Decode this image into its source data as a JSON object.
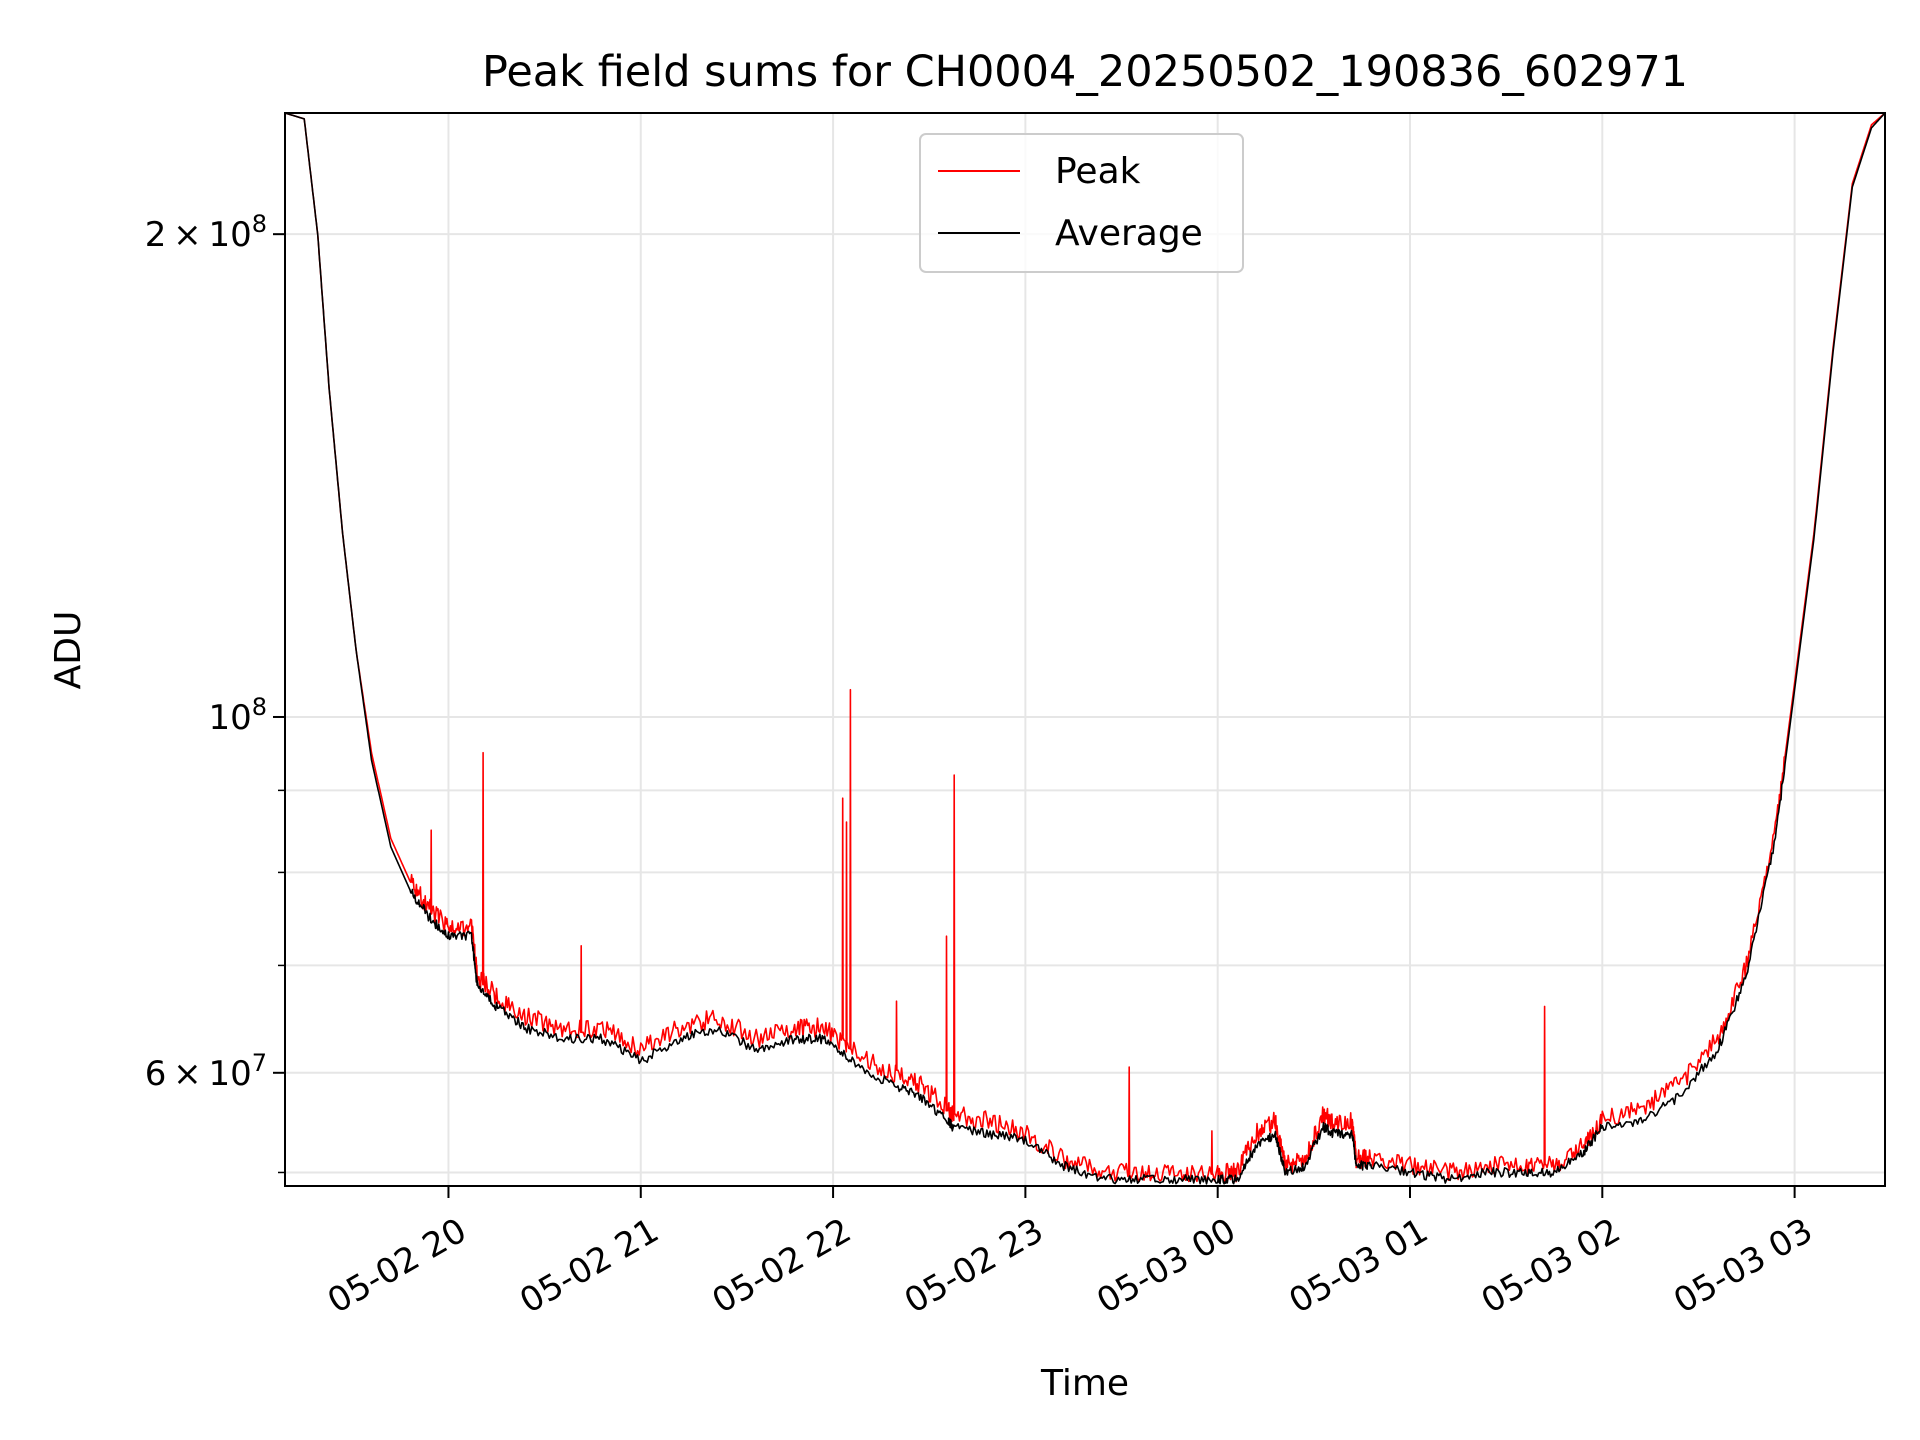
{
  "chart_data": {
    "type": "line",
    "title": "Peak field sums for CH0004_20250502_190836_602971",
    "xlabel": "Time",
    "ylabel": "ADU",
    "yscale": "log",
    "ylim": [
      51000000,
      238000000
    ],
    "xlim_hours": [
      19.15,
      27.47
    ],
    "grid": true,
    "legend_position": "upper center",
    "x_tick_labels": [
      "05-02 20",
      "05-02 21",
      "05-02 22",
      "05-02 23",
      "05-03 00",
      "05-03 01",
      "05-03 02",
      "05-03 03"
    ],
    "x_tick_hours": [
      20,
      21,
      22,
      23,
      24,
      25,
      26,
      27
    ],
    "y_major_ticks": [
      {
        "value": 60000000,
        "base": "6",
        "exp": "7",
        "times": true
      },
      {
        "value": 100000000,
        "base": "",
        "exp": "8",
        "times": false
      },
      {
        "value": 200000000,
        "base": "2",
        "exp": "8",
        "times": true
      }
    ],
    "y_minor_ticks": [
      52000000,
      70000000,
      80000000,
      90000000
    ],
    "colors": {
      "peak": "#ff0000",
      "average": "#000000",
      "grid": "#e6e6e6"
    },
    "series": [
      {
        "name": "Peak",
        "color": "#ff0000",
        "x_hours": [
          19.15,
          19.25,
          19.32,
          19.38,
          19.45,
          19.52,
          19.6,
          19.7,
          19.8,
          19.9,
          20.0,
          20.12,
          20.15,
          20.25,
          20.4,
          20.6,
          20.8,
          21.0,
          21.2,
          21.4,
          21.6,
          21.8,
          21.95,
          22.1,
          22.3,
          22.45,
          22.6,
          22.62,
          22.8,
          23.0,
          23.2,
          23.4,
          23.6,
          23.8,
          24.0,
          24.1,
          24.2,
          24.3,
          24.35,
          24.45,
          24.55,
          24.6,
          24.7,
          24.72,
          24.8,
          25.0,
          25.2,
          25.4,
          25.6,
          25.75,
          25.9,
          26.0,
          26.2,
          26.4,
          26.6,
          26.75,
          26.9,
          27.0,
          27.1,
          27.2,
          27.3,
          27.4,
          27.47
        ],
        "y": [
          238000000,
          236000000,
          200000000,
          160000000,
          130000000,
          110000000,
          95000000,
          84000000,
          79000000,
          76000000,
          74000000,
          74000000,
          69000000,
          67000000,
          65000000,
          64000000,
          64000000,
          62000000,
          64000000,
          65000000,
          63000000,
          64000000,
          64000000,
          62000000,
          60000000,
          59000000,
          57000000,
          56500000,
          56000000,
          55000000,
          53000000,
          52000000,
          52000000,
          52000000,
          52000000,
          52000000,
          55000000,
          56000000,
          52500000,
          53000000,
          56500000,
          56000000,
          56000000,
          53000000,
          53000000,
          52500000,
          52000000,
          52500000,
          52500000,
          52500000,
          54000000,
          56000000,
          57000000,
          59000000,
          63000000,
          70000000,
          85000000,
          105000000,
          130000000,
          170000000,
          215000000,
          234000000,
          238000000
        ],
        "spikes": [
          {
            "hour": 19.91,
            "value": 85000000
          },
          {
            "hour": 20.18,
            "value": 95000000
          },
          {
            "hour": 20.69,
            "value": 72000000
          },
          {
            "hour": 22.05,
            "value": 89000000
          },
          {
            "hour": 22.07,
            "value": 86000000
          },
          {
            "hour": 22.09,
            "value": 104000000
          },
          {
            "hour": 22.33,
            "value": 66500000
          },
          {
            "hour": 22.59,
            "value": 73000000
          },
          {
            "hour": 22.63,
            "value": 92000000
          },
          {
            "hour": 23.54,
            "value": 60500000
          },
          {
            "hour": 23.97,
            "value": 55200000
          },
          {
            "hour": 25.7,
            "value": 66000000
          }
        ]
      },
      {
        "name": "Average",
        "color": "#000000",
        "x_hours": [
          19.15,
          19.25,
          19.32,
          19.38,
          19.45,
          19.52,
          19.6,
          19.7,
          19.8,
          19.9,
          20.0,
          20.12,
          20.15,
          20.25,
          20.4,
          20.6,
          20.8,
          21.0,
          21.2,
          21.4,
          21.6,
          21.8,
          21.95,
          22.1,
          22.3,
          22.45,
          22.6,
          22.62,
          22.8,
          23.0,
          23.2,
          23.4,
          23.6,
          23.8,
          24.0,
          24.1,
          24.2,
          24.3,
          24.35,
          24.45,
          24.55,
          24.6,
          24.7,
          24.72,
          24.8,
          25.0,
          25.2,
          25.4,
          25.6,
          25.75,
          25.9,
          26.0,
          26.2,
          26.4,
          26.6,
          26.75,
          26.9,
          27.0,
          27.1,
          27.2,
          27.3,
          27.4,
          27.47
        ],
        "y": [
          238000000,
          236000000,
          200000000,
          160000000,
          130000000,
          110000000,
          94000000,
          83000000,
          78000000,
          75000000,
          73000000,
          73000000,
          68000000,
          66000000,
          64000000,
          63000000,
          63000000,
          61000000,
          63000000,
          64000000,
          62000000,
          63000000,
          63000000,
          61000000,
          59000000,
          58000000,
          56000000,
          55500000,
          55000000,
          54500000,
          52500000,
          51500000,
          51500000,
          51500000,
          51500000,
          51500000,
          54000000,
          55000000,
          52000000,
          52500000,
          55500000,
          55000000,
          55000000,
          52500000,
          52500000,
          52000000,
          51500000,
          52000000,
          52000000,
          52000000,
          53500000,
          55500000,
          56000000,
          58000000,
          62000000,
          69000000,
          84000000,
          104000000,
          129000000,
          169000000,
          214000000,
          233000000,
          238000000
        ]
      }
    ]
  }
}
